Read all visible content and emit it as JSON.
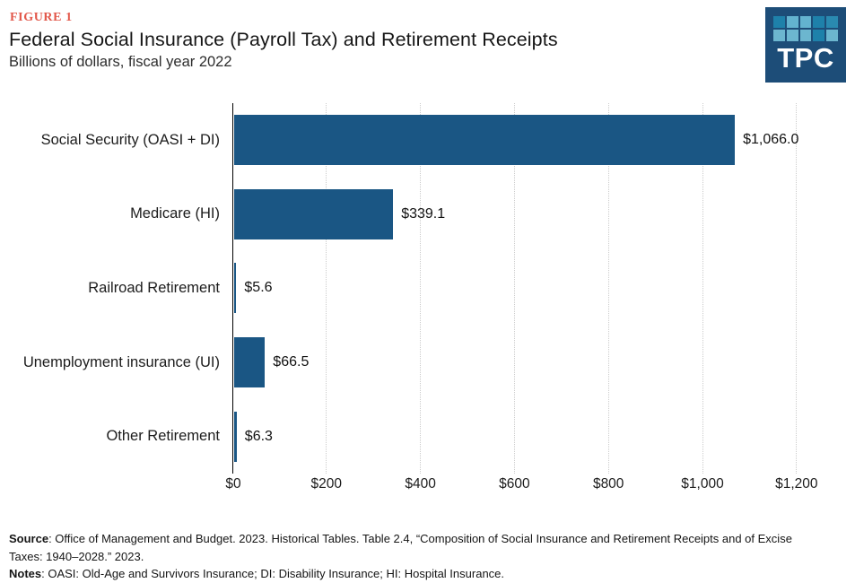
{
  "header": {
    "figure_label": "FIGURE 1",
    "title": "Federal Social Insurance (Payroll Tax) and Retirement Receipts",
    "subtitle": "Billions of dollars, fiscal year 2022"
  },
  "logo": {
    "text": "TPC",
    "bg": "#1d4d78",
    "square_colors": [
      "#1e81aa",
      "#63b3cf",
      "#63b3cf",
      "#1e81aa",
      "#2a8ab0",
      "#6cb6cf",
      "#6cb6cf",
      "#6cb6cf",
      "#1e81aa",
      "#6cb6cf"
    ]
  },
  "chart_data": {
    "type": "bar",
    "orientation": "horizontal",
    "title": "Federal Social Insurance (Payroll Tax) and Retirement Receipts",
    "subtitle": "Billions of dollars, fiscal year 2022",
    "unit": "billions of dollars",
    "categories": [
      "Social Security (OASI + DI)",
      "Medicare (HI)",
      "Railroad Retirement",
      "Unemployment insurance (UI)",
      "Other Retirement"
    ],
    "values": [
      1066.0,
      339.1,
      5.6,
      66.5,
      6.3
    ],
    "value_labels": [
      "$1,066.0",
      "$339.1",
      "$5.6",
      "$66.5",
      "$6.3"
    ],
    "x_tick_labels": [
      "$0",
      "$200",
      "$400",
      "$600",
      "$800",
      "$1,000",
      "$1,200"
    ],
    "xlim": [
      0,
      1200
    ],
    "grid": "vertical-dotted",
    "gridline_color": "#cccccc",
    "bar_color": "#1a5684"
  },
  "footer": {
    "source_label": "Source",
    "source_line1": ": Office of Management and Budget. 2023. Historical Tables. Table 2.4, “Composition of Social Insurance and Retirement Receipts and of Excise",
    "source_line2": "Taxes: 1940–2028.” 2023.",
    "notes_label": "Notes",
    "notes_text": ": OASI: Old-Age and Survivors Insurance; DI: Disability Insurance; HI: Hospital Insurance."
  }
}
